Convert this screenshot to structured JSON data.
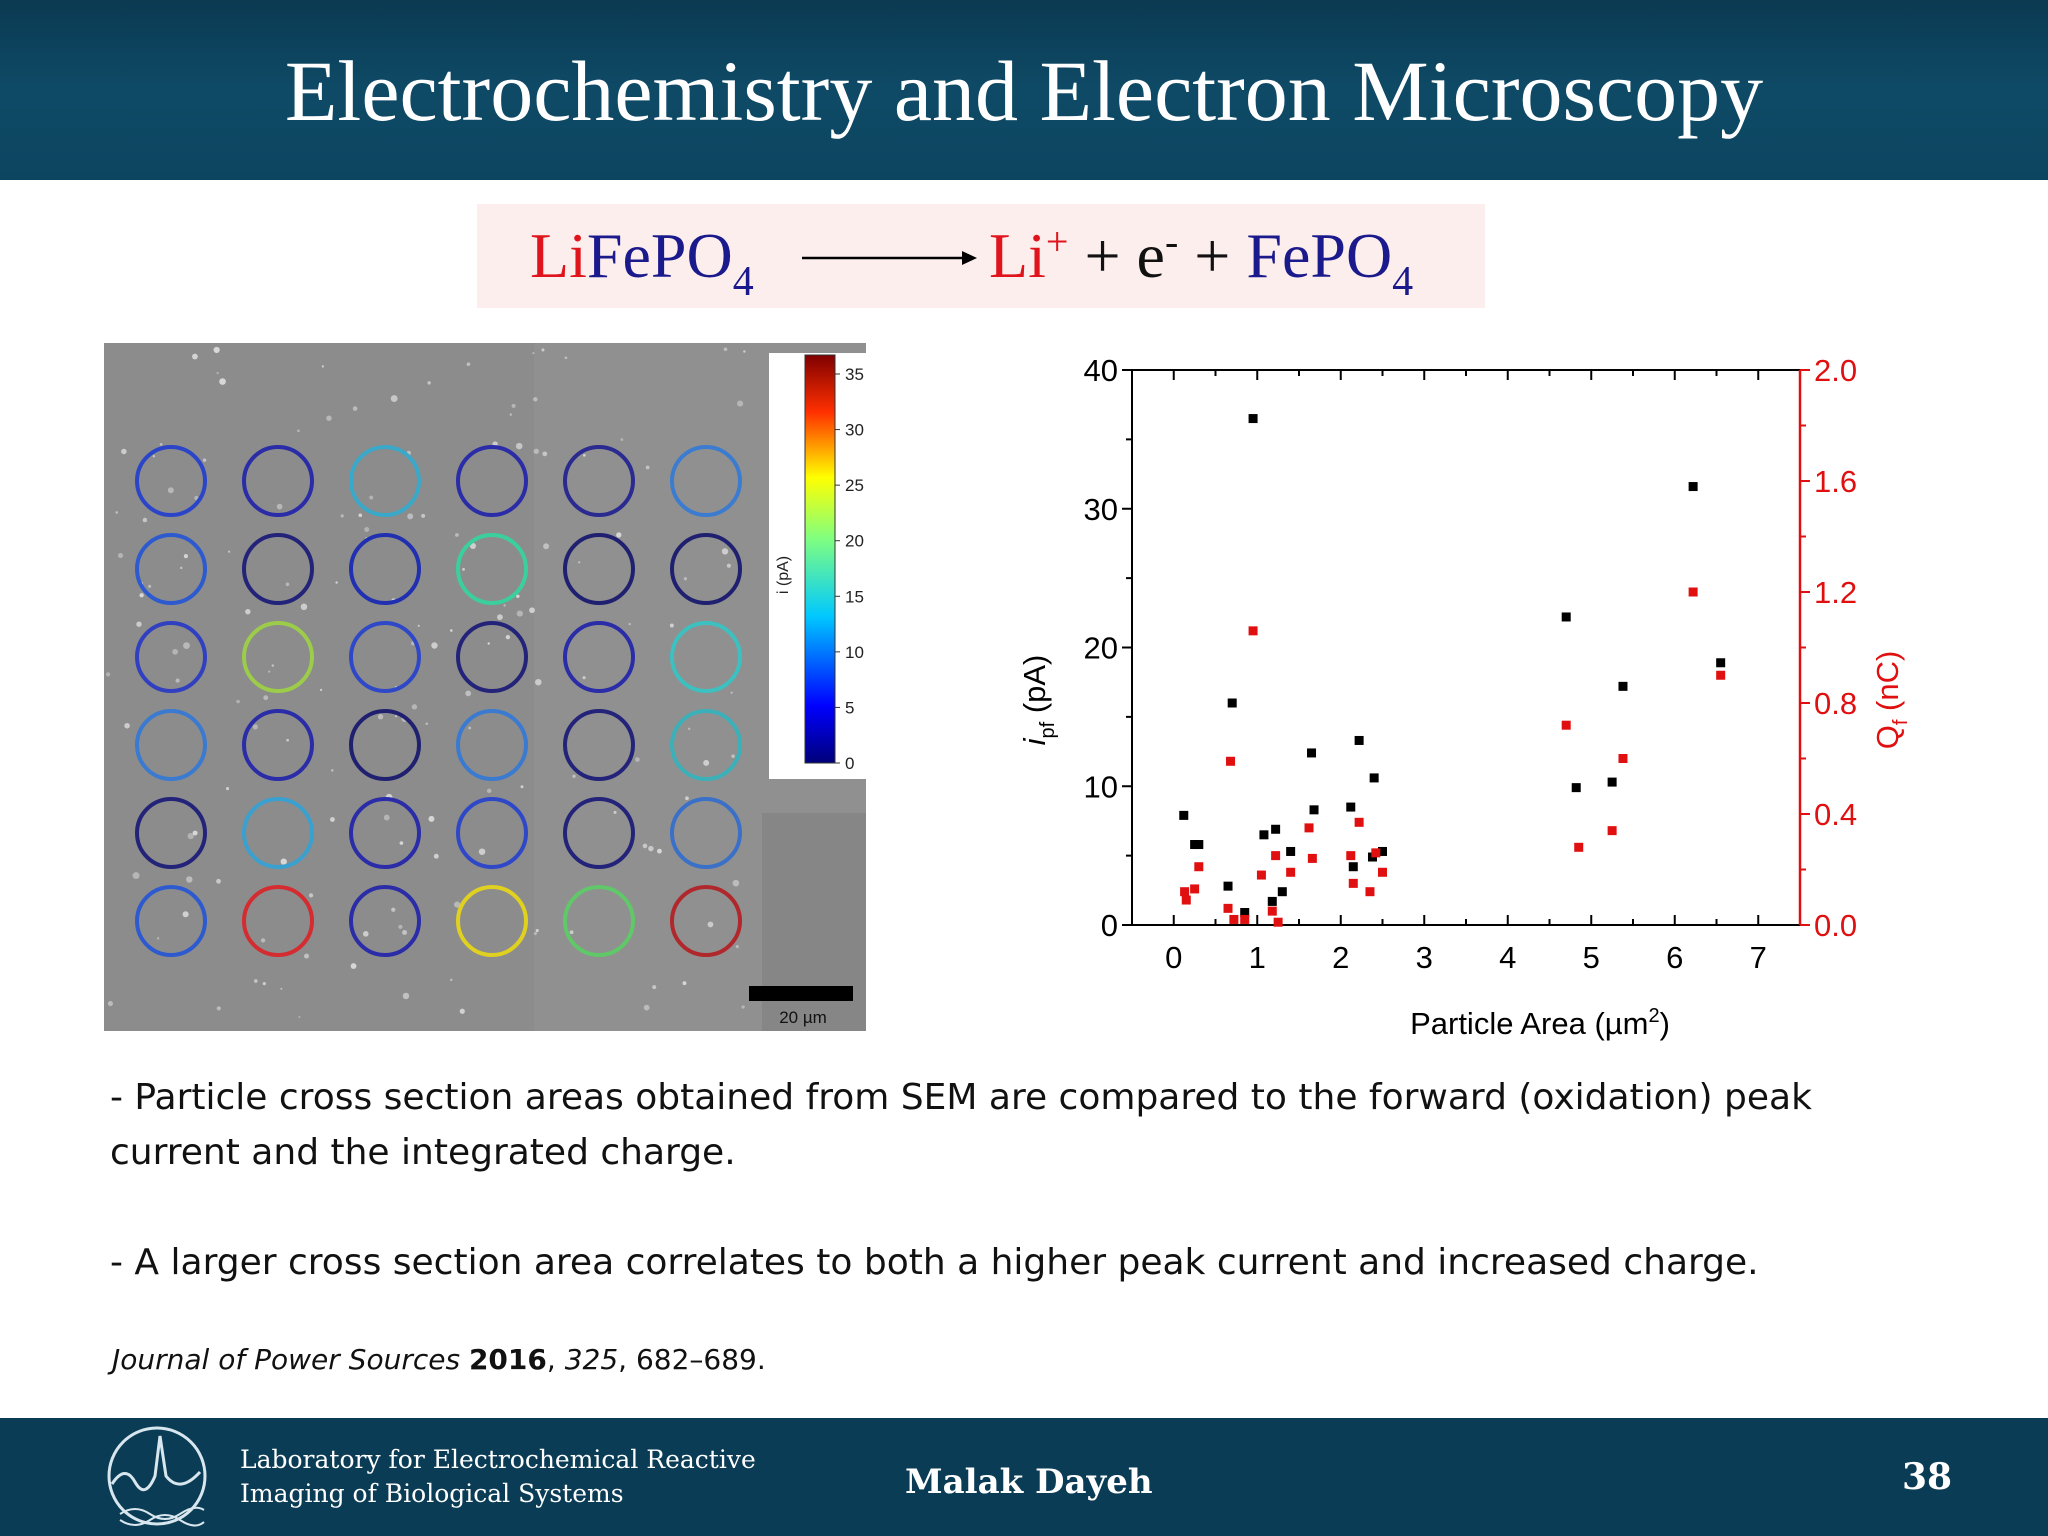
{
  "slide": {
    "title": "Electrochemistry and Electron Microscopy",
    "page_number": "38"
  },
  "equation": {
    "reactant_li": "Li",
    "reactant_fepo": "FePO",
    "reactant_sub": "4",
    "product_li": "Li",
    "product_li_sup": "+",
    "plus1": " + ",
    "electron": "e",
    "electron_sup": "-",
    "plus2": " + ",
    "product_fepo": "FePO",
    "product_sub": "4"
  },
  "sem_image": {
    "colorbar_ticks": [
      "35",
      "30",
      "25",
      "20",
      "15",
      "10",
      "5",
      "0"
    ],
    "colorbar_label": "i (pA)",
    "scale_bar_label": "20 µm",
    "circle_colors": [
      [
        "#2b45c8",
        "#2a2ca8",
        "#3aa8c8",
        "#2a2ca8",
        "#2a2a90",
        "#3c7cd0"
      ],
      [
        "#2e5ad0",
        "#23237a",
        "#2030b0",
        "#3ccf9e",
        "#202070",
        "#202070"
      ],
      [
        "#3040c0",
        "#9ccc4a",
        "#2e48c8",
        "#23237a",
        "#2a2ca8",
        "#3cc0c0"
      ],
      [
        "#3a7ad0",
        "#2a2ca8",
        "#202070",
        "#3a7ad0",
        "#23237a",
        "#3cb0b8"
      ],
      [
        "#23237a",
        "#3aa0d0",
        "#2a2ca8",
        "#2e48c8",
        "#23237a",
        "#3a70c8"
      ],
      [
        "#2e5ad0",
        "#d42c30",
        "#2a2ca8",
        "#e0d020",
        "#60c868",
        "#b0282c"
      ]
    ]
  },
  "chart_data": {
    "type": "scatter",
    "xlabel": "Particle Area (µm²)",
    "ylabel_left": "i_pf (pA)",
    "ylabel_right": "Q_f (nC)",
    "xlim": [
      -0.5,
      7.5
    ],
    "ylim_left": [
      0,
      40
    ],
    "ylim_right": [
      0,
      2.0
    ],
    "x_ticks": [
      "0",
      "1",
      "2",
      "3",
      "4",
      "5",
      "6",
      "7"
    ],
    "y_ticks_left": [
      "0",
      "10",
      "20",
      "30",
      "40"
    ],
    "y_ticks_right": [
      "0.0",
      "0.4",
      "0.8",
      "1.2",
      "1.6",
      "2.0"
    ],
    "series": [
      {
        "axis": "left",
        "color": "#000000",
        "points": [
          [
            0.12,
            7.9
          ],
          [
            0.25,
            5.8
          ],
          [
            0.3,
            5.8
          ],
          [
            0.65,
            2.8
          ],
          [
            0.7,
            16.0
          ],
          [
            0.85,
            0.9
          ],
          [
            0.95,
            36.5
          ],
          [
            1.08,
            6.5
          ],
          [
            1.18,
            1.7
          ],
          [
            1.22,
            6.9
          ],
          [
            1.3,
            2.4
          ],
          [
            1.4,
            5.3
          ],
          [
            1.65,
            12.4
          ],
          [
            1.68,
            8.3
          ],
          [
            2.12,
            8.5
          ],
          [
            2.15,
            4.2
          ],
          [
            2.22,
            13.3
          ],
          [
            2.38,
            4.9
          ],
          [
            2.4,
            10.6
          ],
          [
            2.5,
            5.3
          ],
          [
            4.7,
            22.2
          ],
          [
            4.82,
            9.9
          ],
          [
            5.25,
            10.3
          ],
          [
            5.38,
            17.2
          ],
          [
            6.22,
            31.6
          ],
          [
            6.55,
            18.9
          ]
        ]
      },
      {
        "axis": "right",
        "color": "#e01010",
        "points": [
          [
            0.13,
            0.12
          ],
          [
            0.15,
            0.09
          ],
          [
            0.25,
            0.13
          ],
          [
            0.3,
            0.21
          ],
          [
            0.65,
            0.06
          ],
          [
            0.68,
            0.59
          ],
          [
            0.72,
            0.02
          ],
          [
            0.85,
            0.02
          ],
          [
            0.95,
            1.06
          ],
          [
            1.05,
            0.18
          ],
          [
            1.18,
            0.05
          ],
          [
            1.22,
            0.25
          ],
          [
            1.25,
            0.01
          ],
          [
            1.4,
            0.19
          ],
          [
            1.62,
            0.35
          ],
          [
            1.66,
            0.24
          ],
          [
            2.12,
            0.25
          ],
          [
            2.15,
            0.15
          ],
          [
            2.22,
            0.37
          ],
          [
            2.35,
            0.12
          ],
          [
            2.42,
            0.26
          ],
          [
            2.5,
            0.19
          ],
          [
            4.7,
            0.72
          ],
          [
            4.85,
            0.28
          ],
          [
            5.25,
            0.34
          ],
          [
            5.38,
            0.6
          ],
          [
            6.22,
            1.2
          ],
          [
            6.55,
            0.9
          ]
        ]
      }
    ]
  },
  "bullets": [
    "- Particle cross section areas obtained from SEM are compared to the forward (oxidation) peak",
    "current and the integrated charge.",
    "- A larger cross section area correlates to both a higher peak current and increased charge."
  ],
  "citation": {
    "journal": "Journal of Power Sources",
    "year": "2016",
    "sep1": ", ",
    "volume": "325",
    "pages": ", 682–689."
  },
  "footer": {
    "lab_line1": "Laboratory for Electrochemical Reactive",
    "lab_line2": "Imaging of Biological Systems",
    "presenter": "Malak Dayeh"
  }
}
